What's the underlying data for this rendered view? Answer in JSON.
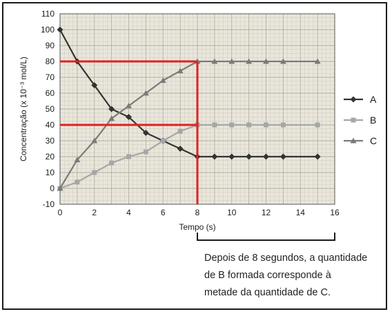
{
  "chart_data": {
    "type": "line",
    "xlabel": "Tempo (s)",
    "ylabel": "Concentração (x 10⁻³ mol/L)",
    "xlim": [
      0,
      16
    ],
    "ylim": [
      -10,
      110
    ],
    "xticks": [
      0,
      2,
      4,
      6,
      8,
      10,
      12,
      14,
      16
    ],
    "yticks": [
      -10,
      0,
      10,
      20,
      30,
      40,
      50,
      60,
      70,
      80,
      90,
      100,
      110
    ],
    "grid": true,
    "legend_position": "right",
    "series": [
      {
        "name": "A",
        "marker": "diamond",
        "color": "#333333",
        "x": [
          0,
          1,
          2,
          3,
          4,
          5,
          6,
          7,
          8,
          9,
          10,
          11,
          12,
          13,
          15
        ],
        "y": [
          100,
          80,
          65,
          50,
          45,
          35,
          30,
          25,
          20,
          20,
          20,
          20,
          20,
          20,
          20
        ]
      },
      {
        "name": "B",
        "marker": "square",
        "color": "#a6a6a6",
        "x": [
          0,
          1,
          2,
          3,
          4,
          5,
          6,
          7,
          8,
          9,
          10,
          11,
          12,
          13,
          15
        ],
        "y": [
          0,
          4,
          10,
          16,
          20,
          23,
          30,
          36,
          40,
          40,
          40,
          40,
          40,
          40,
          40
        ]
      },
      {
        "name": "C",
        "marker": "triangle",
        "color": "#7a7a7a",
        "x": [
          0,
          1,
          2,
          3,
          4,
          5,
          6,
          7,
          8,
          9,
          10,
          11,
          12,
          13,
          15
        ],
        "y": [
          0,
          18,
          30,
          44,
          52,
          60,
          68,
          74,
          80,
          80,
          80,
          80,
          80,
          80,
          80
        ]
      }
    ],
    "highlight_lines": [
      {
        "orientation": "horizontal",
        "y": 80,
        "x_from": 0,
        "x_to": 8,
        "color": "#e02020"
      },
      {
        "orientation": "horizontal",
        "y": 40,
        "x_from": 0,
        "x_to": 8,
        "color": "#e02020"
      },
      {
        "orientation": "vertical",
        "x": 8,
        "y_from": -10,
        "y_to": 80,
        "color": "#e02020"
      }
    ],
    "bracket": {
      "x_from": 8,
      "x_to": 16
    }
  },
  "note": {
    "lines": [
      "Depois de 8 segundos, a quantidade",
      "de B formada corresponde à",
      "metade da quantidade de C."
    ]
  }
}
